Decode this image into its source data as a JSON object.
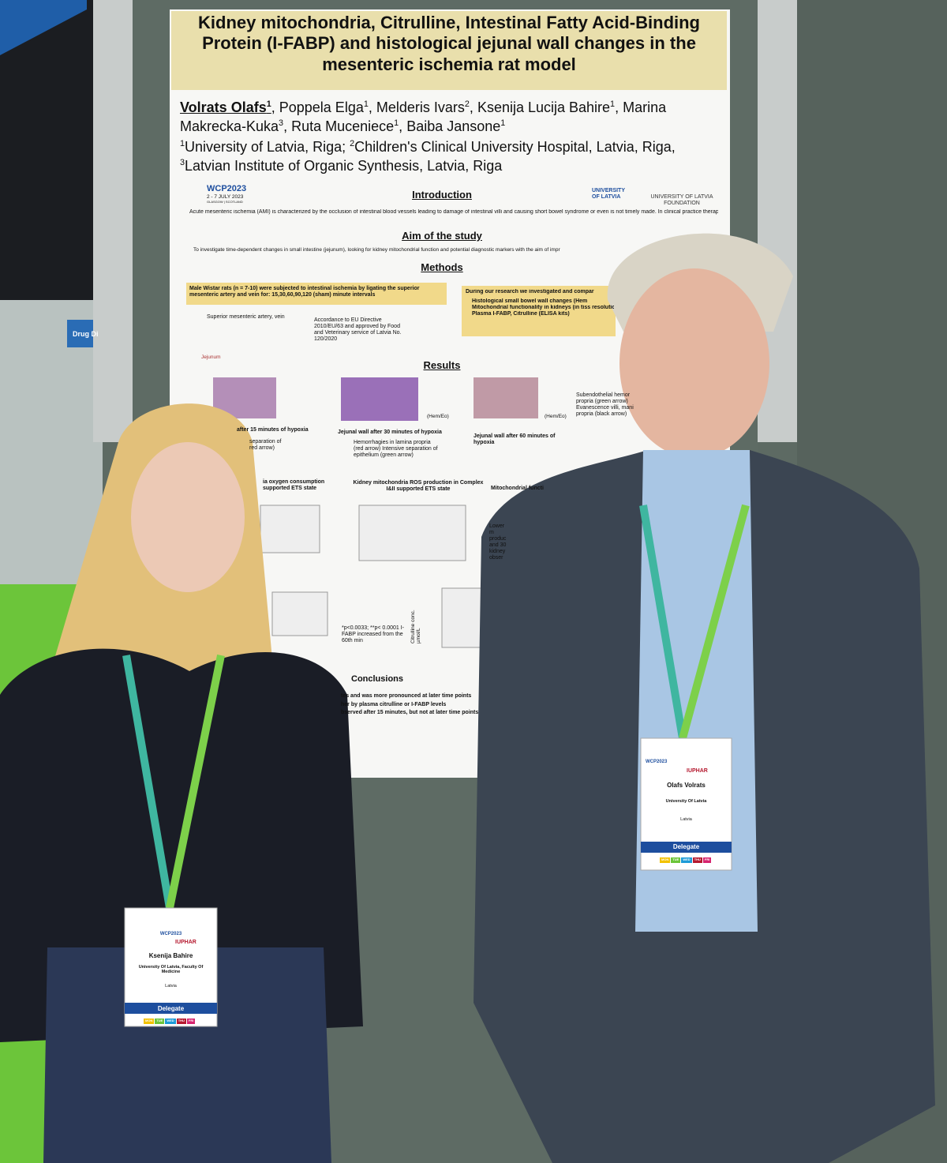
{
  "poster": {
    "title": "Kidney mitochondria, Citrulline, Intestinal Fatty Acid-Binding Protein (I-FABP) and histological jejunal wall changes in the mesenteric ischemia rat model",
    "authors": [
      {
        "name": "Volrats Olafs",
        "sup": "1"
      },
      {
        "name": "Poppela Elga",
        "sup": "1"
      },
      {
        "name": "Melderis Ivars",
        "sup": "2"
      },
      {
        "name": "Ksenija Lucija Bahire",
        "sup": "1"
      },
      {
        "name": "Marina Makrecka-Kuka",
        "sup": "3"
      },
      {
        "name": "Ruta Muceniece",
        "sup": "1"
      },
      {
        "name": "Baiba Jansone",
        "sup": "1"
      }
    ],
    "affiliations": [
      {
        "sup": "1",
        "text": "University of Latvia, Riga;"
      },
      {
        "sup": "2",
        "text": "Children's Clinical University Hospital, Latvia, Riga,"
      },
      {
        "sup": "3",
        "text": "Latvian Institute of Organic Synthesis, Latvia, Riga"
      }
    ],
    "logos": {
      "wcp": "WCP2023",
      "wcp_dates": "2 - 7 JULY 2023",
      "wcp_place": "GLASGOW | SCOTLAND",
      "university": "UNIVERSITY OF LATVIA",
      "foundation": "UNIVERSITY OF LATVIA FOUNDATION"
    },
    "introduction": {
      "heading": "Introduction",
      "text": "Acute mesenteric ischemia (AMI) is characterized by the occlusion of intestinal blood vessels leading to damage of intestinal villi and causing short bowel syndrome or even is not timely made. In clinical practice therapeutic approaches are limited due to lack of symptoms and diagnostic markers. Usually diagnosis is based on surgeons' exp"
    },
    "aim": {
      "heading": "Aim of the study",
      "text": "To investigate time-dependent changes in small intestine (jejunum), looking for kidney mitochondrial function and potential diagnostic markers with the aim of impr"
    },
    "methods": {
      "heading": "Methods",
      "text": "Male Wistar rats (n = 7-10) were subjected to intestinal ischemia by ligating the superior mesenteric artery and vein for: 15,30,60,90,120 (sham) minute intervals",
      "box_title": "During our research we investigated and compar",
      "box_items": [
        "Histological small bowel wall changes (Hem",
        "Mitochondrial functionality in kidneys (in tiss resolution fluorespirometry)",
        "Plasma I-FABP, Citrulline (ELISA kits)"
      ],
      "artery": "Superior mesenteric artery, vein",
      "jejunum": "Jejunum",
      "directive": "Accordance to EU Directive 2010/EU/63 and approved by Food and Veterinary service of Latvia No. 120/2020"
    },
    "results": {
      "heading": "Results",
      "stain": "(Hem/Eo)",
      "captions": [
        "after 15 minutes of hypoxia",
        "Jejunal wall after 30 minutes of hypoxia",
        "Jejunal wall after 60 minutes of hypoxia"
      ],
      "notes30": "Hemorrhagies in lamina propria (red arrow) Intensive separation of epithelium (green arrow)",
      "notes15": "separation of red arrow)",
      "notes60": "Subendothelial hemor propria (green arrow) Evanescence villi, mani propria (black arrow)",
      "chart1": "ia oxygen consumption supported ETS state",
      "chart2": "Kidney mitochondria ROS production in Complex I&II supported ETS state",
      "chart3": "Mitochondrial functi",
      "stats": "*p<0.0033; **p< 0.0001 I-FABP increased from the 60th min",
      "citrulline": "Citrulline conc. µmol/L",
      "lower": "Lower m produc and 30 kidney obser"
    },
    "conclusions": {
      "heading": "Conclusions",
      "lines": [
        "tes and was more pronounced at later time points",
        "her by plasma citrulline or I-FABP levels",
        "bserved after 15 minutes, but not at later time points"
      ]
    }
  },
  "badges": [
    {
      "name": "Ksenija Bahire",
      "org": "University Of Latvia, Faculty Of Medicine",
      "country": "Latvia",
      "role": "Delegate"
    },
    {
      "name": "Olafs Volrats",
      "org": "University Of Latvia",
      "country": "Latvia",
      "role": "Delegate"
    }
  ],
  "badge_brand": {
    "event": "WCP2023",
    "iuphar": "IUPHAR",
    "days": [
      "MON",
      "TUE",
      "WED",
      "THU",
      "FRI"
    ]
  },
  "background": {
    "sign": "Drug Di"
  }
}
